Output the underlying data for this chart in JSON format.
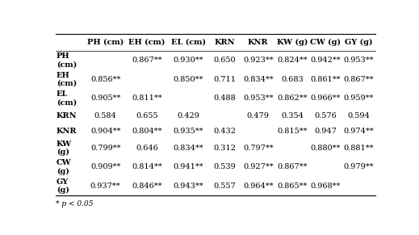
{
  "col_headers": [
    "PH (cm)",
    "EH (cm)",
    "EL (cm)",
    "KRN",
    "KNR",
    "KW (g)",
    "CW (g)",
    "GY (g)"
  ],
  "row_headers": [
    "PH\n(cm)",
    "EH\n(cm)",
    "EL\n(cm)",
    "KRN",
    "KNR",
    "KW\n(g)",
    "CW\n(g)",
    "GY\n(g)"
  ],
  "cell_data": [
    [
      "",
      "0.867**",
      "0.930**",
      "0.650",
      "0.923**",
      "0.824**",
      "0.942**",
      "0.953**"
    ],
    [
      "0.856**",
      "",
      "0.850**",
      "0.711",
      "0.834**",
      "0.683",
      "0.861**",
      "0.867**"
    ],
    [
      "0.905**",
      "0.811**",
      "",
      "0.488",
      "0.953**",
      "0.862**",
      "0.966**",
      "0.959**"
    ],
    [
      "0.584",
      "0.655",
      "0.429",
      "",
      "0.479",
      "0.354",
      "0.576",
      "0.594"
    ],
    [
      "0.904**",
      "0.804**",
      "0.935**",
      "0.432",
      "",
      "0.815**",
      "0.947",
      "0.974**"
    ],
    [
      "0.799**",
      "0.646",
      "0.834**",
      "0.312",
      "0.797**",
      "",
      "0.880**",
      "0.881**"
    ],
    [
      "0.909**",
      "0.814**",
      "0.941**",
      "0.539",
      "0.927**",
      "0.867**",
      "",
      "0.979**"
    ],
    [
      "0.937**",
      "0.846**",
      "0.943**",
      "0.557",
      "0.964**",
      "0.865**",
      "0.968**",
      ""
    ]
  ],
  "footnote": "* p < 0.05",
  "font_size": 7,
  "bg_color": "white",
  "text_color": "black"
}
